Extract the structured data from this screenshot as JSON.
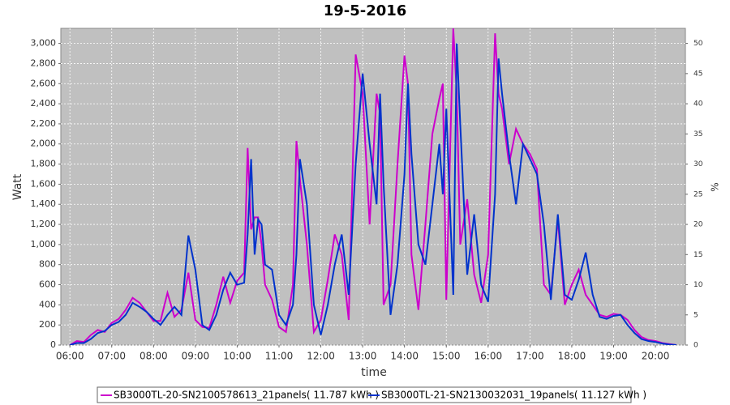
{
  "chart_data": {
    "type": "line",
    "title": "19-5-2016",
    "xlabel": "time",
    "ylabel": "Watt",
    "y2label": "%",
    "x": [
      "06:00",
      "06:10",
      "06:20",
      "06:30",
      "06:40",
      "06:50",
      "07:00",
      "07:10",
      "07:20",
      "07:30",
      "07:40",
      "07:50",
      "08:00",
      "08:10",
      "08:20",
      "08:30",
      "08:40",
      "08:50",
      "09:00",
      "09:10",
      "09:20",
      "09:30",
      "09:40",
      "09:50",
      "10:00",
      "10:10",
      "10:15",
      "10:20",
      "10:25",
      "10:30",
      "10:35",
      "10:40",
      "10:50",
      "11:00",
      "11:10",
      "11:20",
      "11:25",
      "11:30",
      "11:40",
      "11:50",
      "12:00",
      "12:10",
      "12:20",
      "12:30",
      "12:40",
      "12:50",
      "13:00",
      "13:10",
      "13:20",
      "13:25",
      "13:30",
      "13:40",
      "13:50",
      "14:00",
      "14:05",
      "14:10",
      "14:20",
      "14:30",
      "14:40",
      "14:50",
      "14:55",
      "15:00",
      "15:10",
      "15:15",
      "15:20",
      "15:30",
      "15:40",
      "15:50",
      "16:00",
      "16:10",
      "16:15",
      "16:20",
      "16:30",
      "16:40",
      "16:50",
      "17:00",
      "17:10",
      "17:20",
      "17:30",
      "17:40",
      "17:50",
      "18:00",
      "18:10",
      "18:20",
      "18:30",
      "18:40",
      "18:50",
      "19:00",
      "19:10",
      "19:20",
      "19:30",
      "19:40",
      "19:50",
      "20:00",
      "20:10",
      "20:20",
      "20:30"
    ],
    "series": [
      {
        "name": "SB3000TL-20-SN2100578613_21panels( 11.787 kWh )",
        "color": "#cc00cc",
        "values": [
          0,
          40,
          30,
          100,
          150,
          130,
          220,
          260,
          350,
          470,
          420,
          330,
          240,
          240,
          520,
          280,
          350,
          720,
          250,
          180,
          170,
          400,
          680,
          420,
          640,
          720,
          1960,
          1150,
          1270,
          1270,
          1000,
          600,
          450,
          180,
          130,
          600,
          2030,
          1650,
          1000,
          130,
          250,
          650,
          1100,
          900,
          250,
          2890,
          2500,
          1200,
          2500,
          2300,
          400,
          600,
          1800,
          2880,
          2600,
          900,
          350,
          1200,
          2100,
          2450,
          2600,
          450,
          3150,
          2500,
          1000,
          1450,
          700,
          420,
          900,
          3100,
          2500,
          2350,
          1800,
          2150,
          2000,
          1900,
          1750,
          600,
          500,
          1250,
          400,
          600,
          750,
          500,
          400,
          300,
          280,
          310,
          300,
          250,
          150,
          80,
          50,
          40,
          20,
          10,
          0
        ]
      },
      {
        "name": "SB3000TL-21-SN2130032031_19panels( 11.127 kWh )",
        "color": "#0033cc",
        "values": [
          0,
          20,
          20,
          60,
          120,
          140,
          200,
          230,
          300,
          420,
          380,
          330,
          260,
          200,
          300,
          380,
          300,
          1090,
          750,
          200,
          150,
          300,
          550,
          720,
          600,
          620,
          1100,
          1850,
          900,
          1250,
          1200,
          800,
          750,
          300,
          200,
          400,
          900,
          1850,
          1400,
          400,
          100,
          400,
          800,
          1100,
          500,
          1800,
          2700,
          2000,
          1400,
          2500,
          1600,
          300,
          800,
          1700,
          2600,
          1900,
          1000,
          800,
          1400,
          2000,
          1500,
          2350,
          500,
          3000,
          2200,
          700,
          1300,
          600,
          430,
          1500,
          2850,
          2500,
          1900,
          1400,
          2000,
          1850,
          1700,
          1200,
          450,
          1300,
          500,
          450,
          650,
          920,
          500,
          280,
          260,
          290,
          300,
          200,
          120,
          60,
          40,
          30,
          15,
          5,
          0
        ]
      }
    ],
    "xlim": [
      "05:47",
      "20:43"
    ],
    "xticks": [
      "06:00",
      "07:00",
      "08:00",
      "09:00",
      "10:00",
      "11:00",
      "12:00",
      "13:00",
      "14:00",
      "15:00",
      "16:00",
      "17:00",
      "18:00",
      "19:00",
      "20:00"
    ],
    "ylim": [
      0,
      3150
    ],
    "yticks": [
      0,
      200,
      400,
      600,
      800,
      {
        "value": 1000,
        "label": "1,000"
      },
      {
        "value": 1200,
        "label": "1,200"
      },
      {
        "value": 1400,
        "label": "1,400"
      },
      {
        "value": 1600,
        "label": "1,600"
      },
      {
        "value": 1800,
        "label": "1,800"
      },
      {
        "value": 2000,
        "label": "2,000"
      },
      {
        "value": 2200,
        "label": "2,200"
      },
      {
        "value": 2400,
        "label": "2,400"
      },
      {
        "value": 2600,
        "label": "2,600"
      },
      {
        "value": 2800,
        "label": "2,800"
      },
      {
        "value": 3000,
        "label": "3,000"
      }
    ],
    "y2lim": [
      0,
      52.5
    ],
    "y2ticks": [
      0,
      5,
      10,
      15,
      20,
      25,
      30,
      35,
      40,
      45,
      50
    ],
    "grid": true,
    "legend": "bottom"
  }
}
